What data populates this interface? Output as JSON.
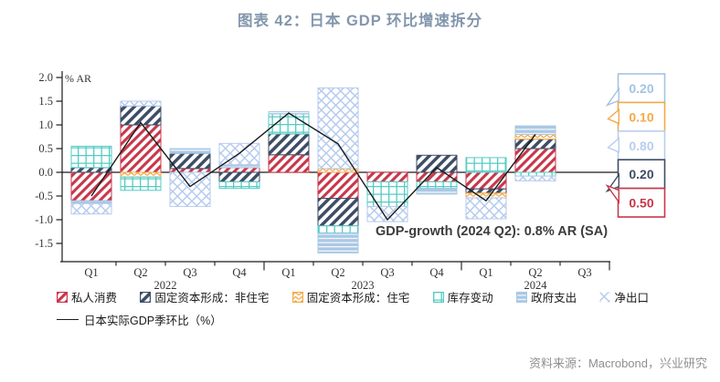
{
  "title": "图表 42：日本 GDP 环比增速拆分",
  "source": "资料来源：Macrobond，兴业研究",
  "colors": {
    "title_text": "#8296AC",
    "annotation_text": "#3C3C3C",
    "source_text": "#8F8F8F",
    "axis_text": "#333333",
    "axis_line": "#1a1a1a"
  },
  "chart_data": {
    "type": "bar",
    "stacked": true,
    "title": "图表 42：日本 GDP 环比增速拆分",
    "unit_label": "% AR",
    "ylim": [
      -1.5,
      2.0
    ],
    "yticks": [
      2.0,
      1.5,
      1.0,
      0.5,
      0.0,
      -0.5,
      -1.0,
      -1.5
    ],
    "grid": false,
    "legend_position": "bottom",
    "categories": [
      "Q1",
      "Q2",
      "Q3",
      "Q4",
      "Q1",
      "Q2",
      "Q3",
      "Q4",
      "Q1",
      "Q2",
      "Q3"
    ],
    "year_groups": [
      {
        "label": "2022",
        "from": 0,
        "to": 3
      },
      {
        "label": "2023",
        "from": 4,
        "to": 7
      },
      {
        "label": "2024",
        "from": 8,
        "to": 10
      }
    ],
    "series": [
      {
        "name": "私人消费",
        "color": "#C8374A",
        "pattern": "diagonal",
        "values": [
          -0.6,
          1.0,
          0.08,
          0.1,
          0.37,
          -0.55,
          -0.2,
          -0.2,
          -0.35,
          0.5,
          null
        ]
      },
      {
        "name": "固定资本形成：非住宅",
        "color": "#3E4D66",
        "pattern": "diagonal",
        "values": [
          0.1,
          0.4,
          0.32,
          -0.2,
          0.44,
          -0.58,
          0.0,
          0.36,
          -0.09,
          0.2,
          null
        ]
      },
      {
        "name": "固定资本形成：住宅",
        "color": "#F2AA49",
        "pattern": "zigzag",
        "values": [
          0.0,
          -0.1,
          0.0,
          0.0,
          0.0,
          0.08,
          0.0,
          0.0,
          -0.1,
          0.1,
          null
        ]
      },
      {
        "name": "库存变动",
        "color": "#55CBC3",
        "pattern": "grid",
        "values": [
          0.45,
          -0.28,
          0.0,
          -0.14,
          0.42,
          -0.16,
          -0.52,
          -0.14,
          0.31,
          -0.08,
          null
        ]
      },
      {
        "name": "政府支出",
        "color": "#AAC8E4",
        "pattern": "hstripes",
        "values": [
          -0.06,
          0.0,
          0.1,
          0.06,
          0.05,
          -0.41,
          0.0,
          -0.12,
          0.0,
          0.18,
          null
        ]
      },
      {
        "name": "净出口",
        "color": "#B6CBEE",
        "pattern": "crosshatch",
        "values": [
          -0.22,
          0.1,
          -0.72,
          0.45,
          0.0,
          1.7,
          -0.32,
          0.0,
          -0.44,
          -0.1,
          null
        ]
      }
    ],
    "line": {
      "name": "日本实际GDP季环比（%）",
      "color": "#1a1a1a",
      "values": [
        -0.5,
        1.05,
        -0.3,
        0.4,
        1.25,
        0.6,
        -1.0,
        0.1,
        -0.6,
        0.8,
        null
      ]
    },
    "annotation": "GDP-growth (2024 Q2): 0.8% AR (SA)",
    "callouts": [
      {
        "value": "0.20",
        "color": "#A3C3E3"
      },
      {
        "value": "0.10",
        "color": "#F2AA49"
      },
      {
        "value": "0.80",
        "color": "#B9CDEF"
      },
      {
        "value": "0.20",
        "color": "#3E4D66"
      },
      {
        "value": "0.50",
        "color": "#C8374A"
      }
    ]
  }
}
